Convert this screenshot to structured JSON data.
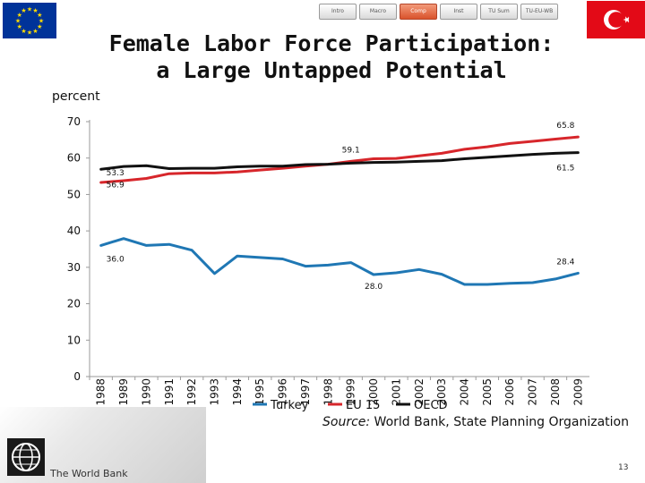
{
  "nav": {
    "items": [
      "Intro",
      "Macro",
      "Comp",
      "Inst",
      "TU Sum",
      "TU-EU-WB"
    ],
    "active_index": 2
  },
  "title": {
    "line1": "Female Labor Force Participation:",
    "line2": "a Large Untapped Potential"
  },
  "unit_label": "percent",
  "colors": {
    "turkey": "#1f77b4",
    "eu15": "#d7262b",
    "oecd": "#111111",
    "nav_active": "#d9532c",
    "eu_flag": "#003399",
    "eu_stars": "#ffdd00",
    "tr_flag": "#e30a17"
  },
  "chart_data": {
    "type": "line",
    "title": "Female Labor Force Participation",
    "xlabel": "",
    "ylabel": "percent",
    "ylim": [
      0,
      70
    ],
    "yticks": [
      0,
      10,
      20,
      30,
      40,
      50,
      60,
      70
    ],
    "x": [
      "1988",
      "1989",
      "1990",
      "1991",
      "1992",
      "1993",
      "1994",
      "1995",
      "1996",
      "1997",
      "1998",
      "1999",
      "2000",
      "2001",
      "2002",
      "2003",
      "2004",
      "2005",
      "2006",
      "2007",
      "2008",
      "2009"
    ],
    "series": [
      {
        "name": "Turkey",
        "values": [
          36.0,
          37.9,
          36.0,
          36.3,
          34.7,
          28.3,
          33.1,
          32.7,
          32.3,
          30.3,
          30.6,
          31.3,
          28.0,
          28.5,
          29.4,
          28.1,
          25.3,
          25.3,
          25.6,
          25.8,
          26.8,
          28.4
        ]
      },
      {
        "name": "EU 15",
        "values": [
          53.3,
          53.8,
          54.4,
          55.7,
          55.9,
          55.9,
          56.2,
          56.7,
          57.2,
          57.8,
          58.3,
          59.1,
          59.8,
          59.9,
          60.6,
          61.3,
          62.4,
          63.1,
          64.0,
          64.6,
          65.2,
          65.8
        ]
      },
      {
        "name": "OECD",
        "values": [
          56.9,
          57.7,
          57.9,
          57.1,
          57.2,
          57.2,
          57.6,
          57.8,
          57.8,
          58.2,
          58.3,
          58.6,
          58.8,
          58.9,
          59.1,
          59.3,
          59.8,
          60.2,
          60.6,
          61.0,
          61.3,
          61.5
        ]
      }
    ],
    "annotations": [
      {
        "text": "65.8",
        "series": "EU 15",
        "year": "2009"
      },
      {
        "text": "59.1",
        "series": "EU 15",
        "year": "1999"
      },
      {
        "text": "53.3",
        "series": "EU 15",
        "year": "1988"
      },
      {
        "text": "61.5",
        "series": "OECD",
        "year": "2009"
      },
      {
        "text": "56.9",
        "series": "OECD",
        "year": "1988"
      },
      {
        "text": "36.0",
        "series": "Turkey",
        "year": "1988"
      },
      {
        "text": "28.0",
        "series": "Turkey",
        "year": "2000"
      },
      {
        "text": "28.4",
        "series": "Turkey",
        "year": "2009"
      }
    ],
    "legend": {
      "placement": "bottom-center",
      "entries": [
        "Turkey",
        "EU 15",
        "OECD"
      ]
    }
  },
  "source": {
    "label": "Source:",
    "text": " World Bank, State Planning Organization"
  },
  "footer": {
    "brand": "The World Bank",
    "page_number": "13"
  }
}
